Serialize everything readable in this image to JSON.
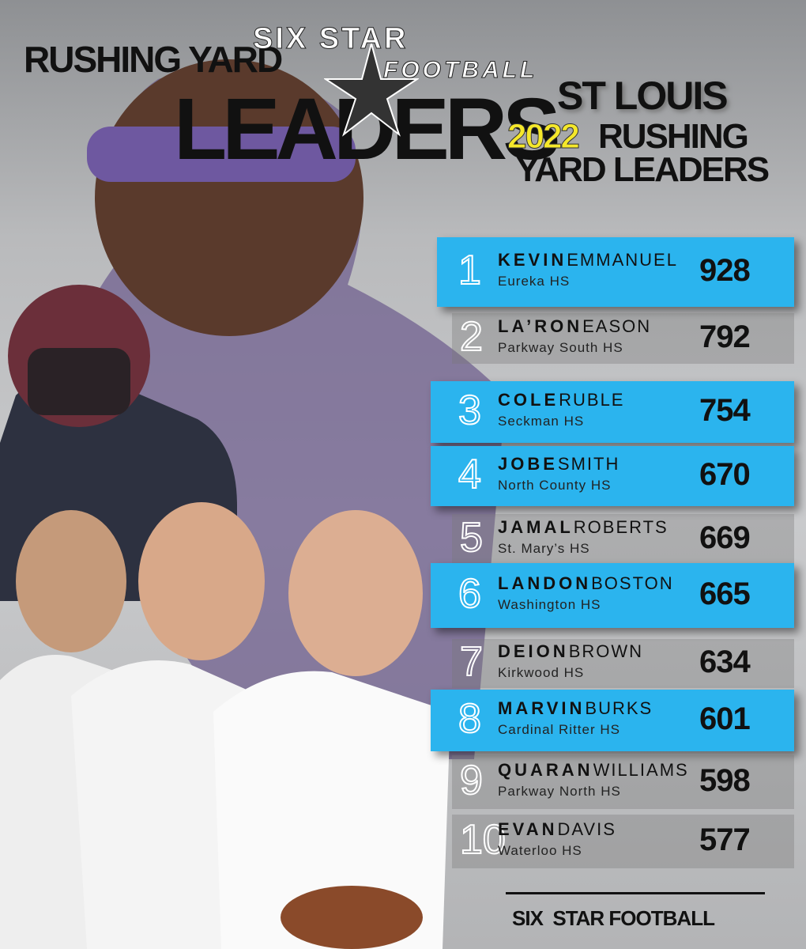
{
  "header": {
    "bg_title_top": "RUSHING YARD",
    "bg_title_big": "LEADERS",
    "logo_top": "SIX STAR",
    "logo_bottom": "FOOTBALL",
    "city": "ST LOUIS",
    "year": "2022",
    "title_line1": "RUSHING",
    "title_line2": "YARD LEADERS"
  },
  "leaders": [
    {
      "rank": 1,
      "first": "KEVIN",
      "last": "EMMANUEL",
      "school": "Eureka HS",
      "yards": 928,
      "highlight": true
    },
    {
      "rank": 2,
      "first": "LA’RON",
      "last": "EASON",
      "school": "Parkway South HS",
      "yards": 792,
      "highlight": false
    },
    {
      "rank": 3,
      "first": "COLE",
      "last": "RUBLE",
      "school": "Seckman HS",
      "yards": 754,
      "highlight": true
    },
    {
      "rank": 4,
      "first": "JOBE",
      "last": "SMITH",
      "school": "North County HS",
      "yards": 670,
      "highlight": true
    },
    {
      "rank": 5,
      "first": "JAMAL",
      "last": "ROBERTS",
      "school": "St. Mary’s HS",
      "yards": 669,
      "highlight": false
    },
    {
      "rank": 6,
      "first": "LANDON",
      "last": "BOSTON",
      "school": "Washington HS",
      "yards": 665,
      "highlight": true
    },
    {
      "rank": 7,
      "first": "DEION",
      "last": "BROWN",
      "school": "Kirkwood HS",
      "yards": 634,
      "highlight": false
    },
    {
      "rank": 8,
      "first": "MARVIN",
      "last": "BURKS",
      "school": "Cardinal Ritter HS",
      "yards": 601,
      "highlight": true
    },
    {
      "rank": 9,
      "first": "QUARAN",
      "last": "WILLIAMS",
      "school": "Parkway North HS",
      "yards": 598,
      "highlight": false
    },
    {
      "rank": 10,
      "first": "EVAN",
      "last": "DAVIS",
      "school": "Waterloo HS",
      "yards": 577,
      "highlight": false
    }
  ],
  "footer": "SIX  STAR FOOTBALL"
}
